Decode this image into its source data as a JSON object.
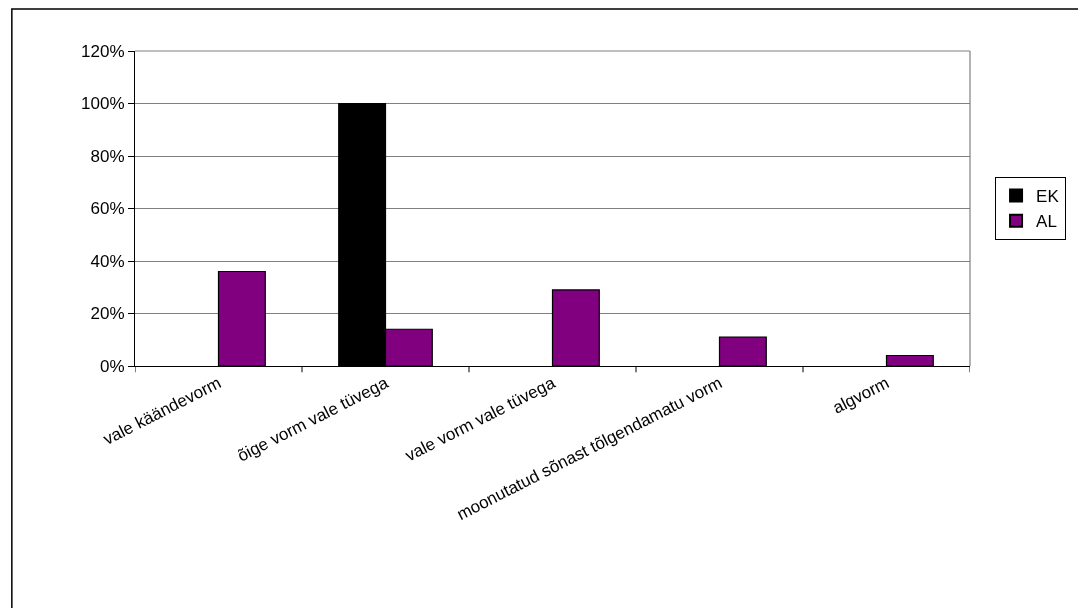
{
  "chart_data": {
    "type": "bar",
    "categories": [
      "vale käändevorm",
      "õige vorm vale tüvega",
      "vale vorm vale tüvega",
      "moonutatud sõnast tõlgendamatu vorm",
      "algvorm"
    ],
    "series": [
      {
        "name": "EK",
        "color": "#000000",
        "values": [
          null,
          100,
          null,
          null,
          null
        ]
      },
      {
        "name": "AL",
        "color": "#800080",
        "values": [
          36,
          14,
          29,
          11,
          4
        ]
      }
    ],
    "ylim": [
      0,
      120
    ],
    "yticks": [
      {
        "value": 0,
        "label": "0%"
      },
      {
        "value": 20,
        "label": "20%"
      },
      {
        "value": 40,
        "label": "40%"
      },
      {
        "value": 60,
        "label": "60%"
      },
      {
        "value": 80,
        "label": "80%"
      },
      {
        "value": 100,
        "label": "100%"
      },
      {
        "value": 120,
        "label": "120%"
      }
    ],
    "grid": "y",
    "legend": "right"
  }
}
